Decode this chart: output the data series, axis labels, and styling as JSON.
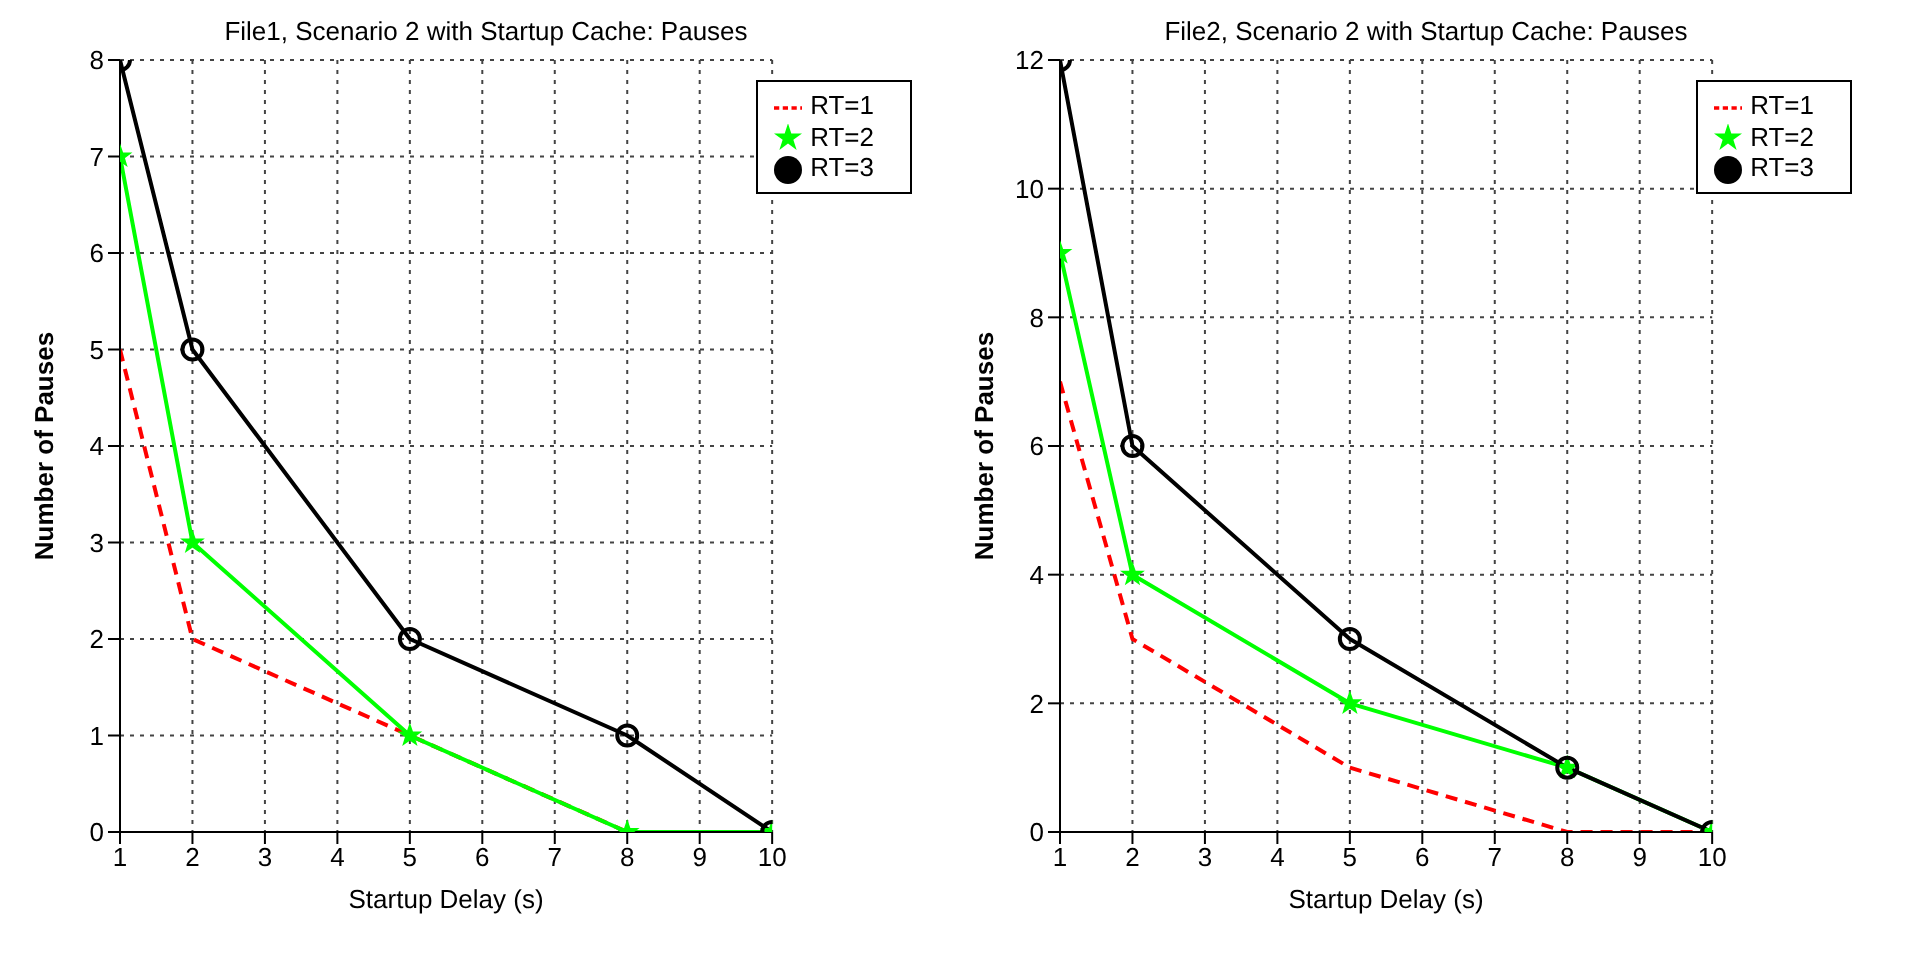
{
  "chart_data": [
    {
      "type": "line",
      "title": "File1, Scenario 2 with Startup Cache: Pauses",
      "xlabel": "Startup Delay (s)",
      "ylabel": "Number of Pauses",
      "x": [
        1,
        2,
        5,
        8,
        10
      ],
      "xlim": [
        1,
        10
      ],
      "xticks": [
        1,
        2,
        3,
        4,
        5,
        6,
        7,
        8,
        9,
        10
      ],
      "ylim": [
        0,
        8
      ],
      "yticks": [
        0,
        1,
        2,
        3,
        4,
        5,
        6,
        7,
        8
      ],
      "grid": true,
      "legend": "top right",
      "series": [
        {
          "name": "RT=1",
          "color": "#ff0000",
          "values": [
            5,
            2,
            1,
            0,
            0
          ],
          "marker": "none",
          "line_style": "dashed"
        },
        {
          "name": "RT=2",
          "color": "#00ff00",
          "values": [
            7,
            3,
            1,
            0,
            0
          ],
          "marker": "star",
          "line_style": "solid"
        },
        {
          "name": "RT=3",
          "color": "#000000",
          "values": [
            8,
            5,
            2,
            1,
            0
          ],
          "marker": "circle",
          "line_style": "solid"
        }
      ]
    },
    {
      "type": "line",
      "title": "File2, Scenario 2 with Startup Cache: Pauses",
      "xlabel": "Startup Delay (s)",
      "ylabel": "Number of Pauses",
      "x": [
        1,
        2,
        5,
        8,
        10
      ],
      "xlim": [
        1,
        10
      ],
      "xticks": [
        1,
        2,
        3,
        4,
        5,
        6,
        7,
        8,
        9,
        10
      ],
      "ylim": [
        0,
        12
      ],
      "yticks": [
        0,
        2,
        4,
        6,
        8,
        10,
        12
      ],
      "grid": true,
      "legend": "top right",
      "series": [
        {
          "name": "RT=1",
          "color": "#ff0000",
          "values": [
            7,
            3,
            1,
            0,
            0
          ],
          "marker": "none",
          "line_style": "dashed"
        },
        {
          "name": "RT=2",
          "color": "#00ff00",
          "values": [
            9,
            4,
            2,
            1,
            0
          ],
          "marker": "star",
          "line_style": "solid"
        },
        {
          "name": "RT=3",
          "color": "#000000",
          "values": [
            12,
            6,
            3,
            1,
            0
          ],
          "marker": "circle",
          "line_style": "solid"
        }
      ]
    }
  ]
}
